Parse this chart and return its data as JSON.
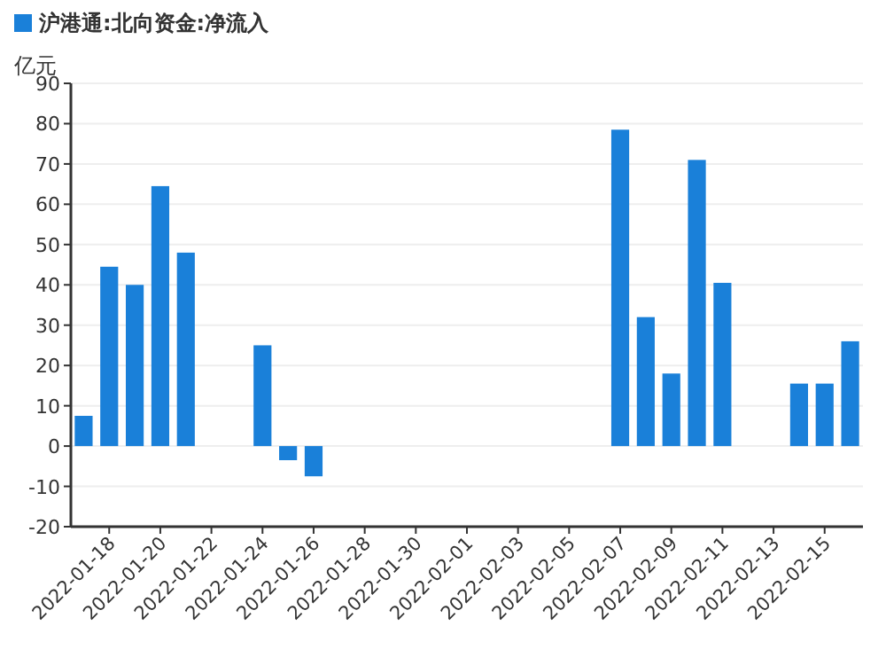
{
  "chart_data": {
    "type": "bar",
    "ylabel": "亿元",
    "legend": "top left",
    "grid": "y",
    "categories": [
      null,
      "2022-01-18",
      null,
      "2022-01-20",
      null,
      "2022-01-22",
      null,
      "2022-01-24",
      null,
      "2022-01-26",
      null,
      "2022-01-28",
      null,
      "2022-01-30",
      null,
      "2022-02-01",
      null,
      "2022-02-03",
      null,
      "2022-02-05",
      null,
      "2022-02-07",
      null,
      "2022-02-09",
      null,
      "2022-02-11",
      null,
      "2022-02-13",
      null,
      "2022-02-15",
      null
    ],
    "series": [
      {
        "name": "沪港通:北向资金:净流入",
        "color": "#1a80d9",
        "values": [
          7.5,
          44.5,
          40,
          64.5,
          48,
          null,
          null,
          25,
          -3.5,
          -7.5,
          null,
          null,
          null,
          null,
          null,
          null,
          null,
          null,
          null,
          null,
          null,
          78.5,
          32,
          18,
          71,
          40.5,
          null,
          null,
          15.5,
          15.5,
          26
        ]
      }
    ],
    "ylim": [
      -20,
      90
    ],
    "yticks": [
      -20,
      -10,
      0,
      10,
      20,
      30,
      40,
      50,
      60,
      70,
      80,
      90
    ]
  }
}
